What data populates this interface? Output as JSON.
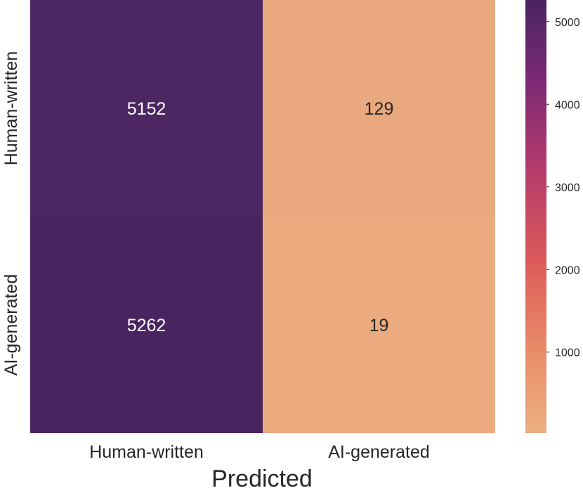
{
  "chart_data": {
    "type": "heatmap",
    "title": "",
    "xlabel": "Predicted",
    "ylabel": "",
    "x_categories": [
      "Human-written",
      "AI-generated"
    ],
    "y_categories": [
      "Human-written",
      "AI-generated"
    ],
    "values": [
      [
        5152,
        129
      ],
      [
        5262,
        19
      ]
    ],
    "colorbar": {
      "min": 19,
      "max": 5262,
      "ticks": [
        1000,
        2000,
        3000,
        4000,
        5000
      ],
      "colormap": "flare"
    },
    "colors": {
      "low": "#ecab7e",
      "high": "#4a2460",
      "dark_text": "#262626",
      "light_text": "#ffffff"
    }
  }
}
